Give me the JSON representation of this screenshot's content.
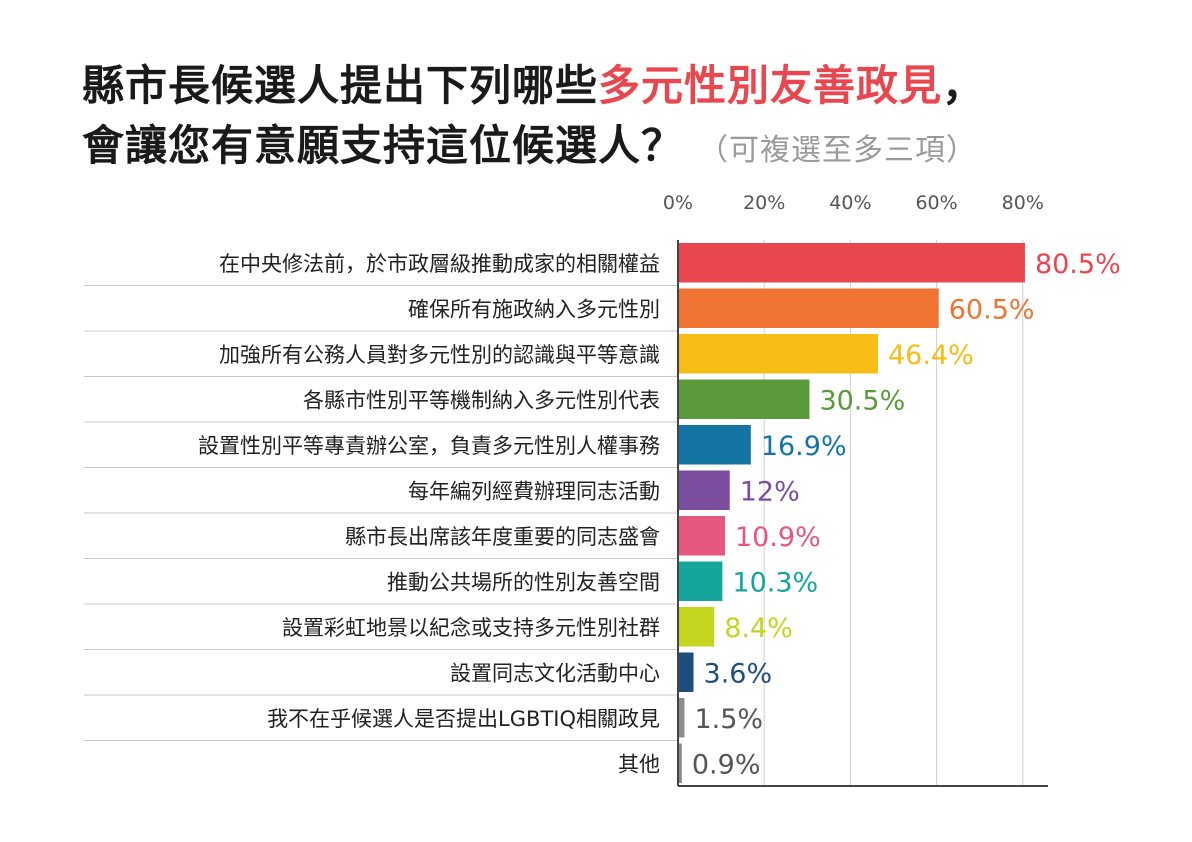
{
  "title": {
    "line1_prefix": "縣市長候選人提出下列哪些",
    "line1_highlight": "多元性別友善政見",
    "line1_suffix": "，",
    "line2": "會讓您有意願支持這位候選人？",
    "note": "（可複選至多三項）"
  },
  "chart_data": {
    "type": "bar",
    "orientation": "horizontal",
    "categories": [
      "在中央修法前，於市政層級推動成家的相關權益",
      "確保所有施政納入多元性別",
      "加強所有公務人員對多元性別的認識與平等意識",
      "各縣市性別平等機制納入多元性別代表",
      "設置性別平等專責辦公室，負責多元性別人權事務",
      "每年編列經費辦理同志活動",
      "縣市長出席該年度重要的同志盛會",
      "推動公共場所的性別友善空間",
      "設置彩虹地景以紀念或支持多元性別社群",
      "設置同志文化活動中心",
      "我不在乎候選人是否提出LGBTIQ相關政見",
      "其他"
    ],
    "values": [
      80.5,
      60.5,
      46.4,
      30.5,
      16.9,
      12,
      10.9,
      10.3,
      8.4,
      3.6,
      1.5,
      0.9
    ],
    "value_labels": [
      "80.5%",
      "60.5%",
      "46.4%",
      "30.5%",
      "16.9%",
      "12%",
      "10.9%",
      "10.3%",
      "8.4%",
      "3.6%",
      "1.5%",
      "0.9%"
    ],
    "colors": [
      "#e8474f",
      "#ef7431",
      "#f6bd16",
      "#5a9a3a",
      "#1474a4",
      "#7b4d9f",
      "#e6577f",
      "#14a59b",
      "#c5d41f",
      "#1f4e7e",
      "#8c8c8c",
      "#8c8c8c"
    ],
    "xticks": [
      "0%",
      "20%",
      "40%",
      "60%",
      "80%"
    ],
    "xtick_values": [
      0,
      20,
      40,
      60,
      80
    ],
    "xlim": [
      0,
      85
    ],
    "grid": true
  }
}
